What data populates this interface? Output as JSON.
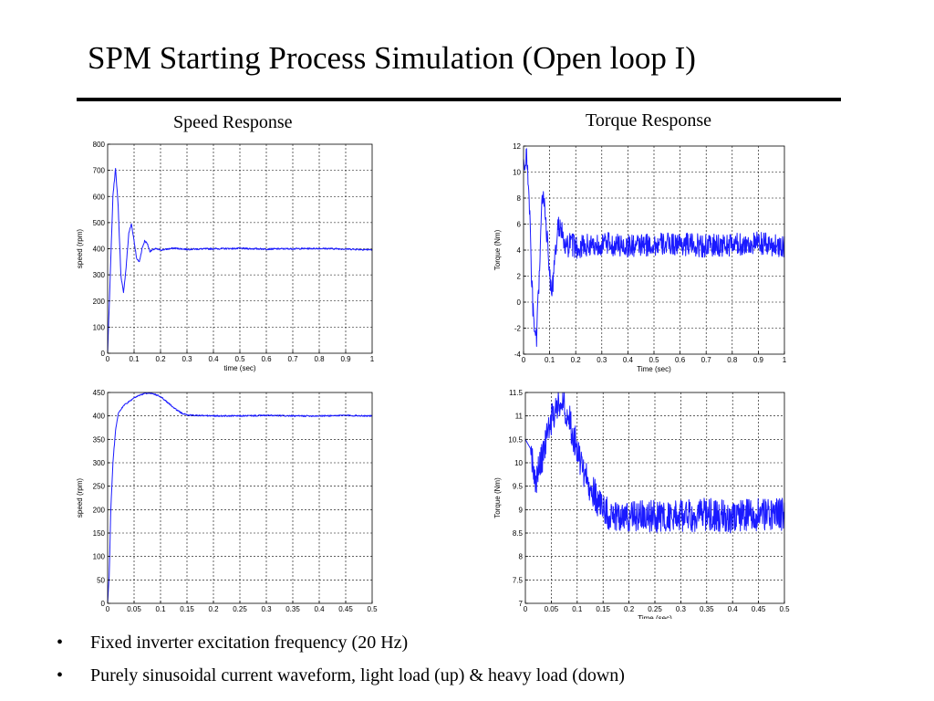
{
  "slide": {
    "title": "SPM Starting Process Simulation (Open loop I)",
    "left_heading": "Speed Response",
    "right_heading": "Torque Response",
    "bullets": [
      "Fixed inverter excitation frequency (20 Hz)",
      "Purely sinusoidal current waveform, light load (up) & heavy load (down)"
    ],
    "bullet_symbol": "•"
  },
  "colors": {
    "trace": "#1a1aff",
    "grid": "#000000",
    "text": "#000000"
  },
  "chart_data": [
    {
      "id": "speed-light",
      "type": "line",
      "xlabel": "time (sec)",
      "ylabel": "speed (rpm)",
      "xlim": [
        0,
        1
      ],
      "ylim": [
        0,
        800
      ],
      "xticks": [
        0,
        0.1,
        0.2,
        0.3,
        0.4,
        0.5,
        0.6,
        0.7,
        0.8,
        0.9,
        1
      ],
      "yticks": [
        0,
        100,
        200,
        300,
        400,
        500,
        600,
        700,
        800
      ],
      "grid": true,
      "series": [
        {
          "noise": 3,
          "x": [
            0,
            0.01,
            0.02,
            0.03,
            0.04,
            0.05,
            0.06,
            0.07,
            0.08,
            0.09,
            0.1,
            0.11,
            0.12,
            0.13,
            0.14,
            0.15,
            0.16,
            0.18,
            0.2,
            0.25,
            0.3,
            0.4,
            0.5,
            0.6,
            0.7,
            0.8,
            0.9,
            1.0
          ],
          "y": [
            0,
            300,
            600,
            710,
            560,
            300,
            230,
            330,
            460,
            495,
            430,
            360,
            350,
            400,
            430,
            420,
            390,
            400,
            395,
            402,
            398,
            400,
            401,
            399,
            400,
            401,
            399,
            396
          ]
        }
      ]
    },
    {
      "id": "torque-light",
      "type": "line",
      "xlabel": "Time (sec)",
      "ylabel": "Torque (Nm)",
      "xlim": [
        0,
        1
      ],
      "ylim": [
        -4,
        12
      ],
      "xticks": [
        0,
        0.1,
        0.2,
        0.3,
        0.4,
        0.5,
        0.6,
        0.7,
        0.8,
        0.9,
        1
      ],
      "yticks": [
        -4,
        -2,
        0,
        2,
        4,
        6,
        8,
        10,
        12
      ],
      "grid": true,
      "series": [
        {
          "noise": 0.9,
          "x": [
            0,
            0.005,
            0.01,
            0.015,
            0.02,
            0.025,
            0.03,
            0.04,
            0.05,
            0.06,
            0.07,
            0.08,
            0.09,
            0.1,
            0.11,
            0.12,
            0.13,
            0.14,
            0.15,
            0.16,
            0.18,
            0.2,
            0.3,
            0.4,
            0.5,
            0.6,
            0.7,
            0.8,
            0.9,
            1.0
          ],
          "y": [
            11,
            10,
            11.5,
            10,
            9,
            6,
            2,
            -2,
            -3,
            2,
            7.5,
            8,
            5,
            2,
            1,
            3,
            5.5,
            6,
            5,
            4,
            4.5,
            4.2,
            4.5,
            4.3,
            4.4,
            4.5,
            4.3,
            4.4,
            4.5,
            4.3
          ]
        }
      ]
    },
    {
      "id": "speed-heavy",
      "type": "line",
      "xlabel": "",
      "ylabel": "speed (rpm)",
      "xlim": [
        0,
        0.5
      ],
      "ylim": [
        0,
        450
      ],
      "xticks": [
        0,
        0.05,
        0.1,
        0.15,
        0.2,
        0.25,
        0.3,
        0.35,
        0.4,
        0.45,
        0.5
      ],
      "yticks": [
        0,
        50,
        100,
        150,
        200,
        250,
        300,
        350,
        400,
        450
      ],
      "grid": true,
      "series": [
        {
          "noise": 1.5,
          "x": [
            0,
            0.003,
            0.006,
            0.01,
            0.015,
            0.02,
            0.03,
            0.04,
            0.05,
            0.06,
            0.07,
            0.08,
            0.09,
            0.1,
            0.11,
            0.12,
            0.13,
            0.14,
            0.15,
            0.17,
            0.2,
            0.25,
            0.3,
            0.35,
            0.4,
            0.45,
            0.5
          ],
          "y": [
            0,
            60,
            200,
            300,
            370,
            405,
            422,
            430,
            438,
            444,
            448,
            449,
            446,
            441,
            432,
            422,
            413,
            406,
            402,
            401,
            400,
            400,
            401,
            400,
            400,
            401,
            400
          ]
        }
      ]
    },
    {
      "id": "torque-heavy",
      "type": "line",
      "xlabel": "Time (sec)",
      "ylabel": "Torque (Nm)",
      "xlim": [
        0,
        0.5
      ],
      "ylim": [
        7,
        11.5
      ],
      "xticks": [
        0,
        0.05,
        0.1,
        0.15,
        0.2,
        0.25,
        0.3,
        0.35,
        0.4,
        0.45,
        0.5
      ],
      "yticks": [
        7,
        7.5,
        8,
        8.5,
        9,
        9.5,
        10,
        10.5,
        11,
        11.5
      ],
      "grid": true,
      "series": [
        {
          "noise": 0.35,
          "x": [
            0,
            0.01,
            0.02,
            0.03,
            0.04,
            0.05,
            0.06,
            0.07,
            0.08,
            0.09,
            0.1,
            0.11,
            0.12,
            0.13,
            0.14,
            0.15,
            0.16,
            0.18,
            0.2,
            0.25,
            0.3,
            0.35,
            0.4,
            0.45,
            0.5
          ],
          "y": [
            10.5,
            10.3,
            9.6,
            10.0,
            10.5,
            10.9,
            11.2,
            11.4,
            11.1,
            10.7,
            10.3,
            9.9,
            9.6,
            9.4,
            9.2,
            9.0,
            8.9,
            8.9,
            8.85,
            8.85,
            8.85,
            8.9,
            8.85,
            8.9,
            8.9
          ]
        }
      ]
    }
  ]
}
